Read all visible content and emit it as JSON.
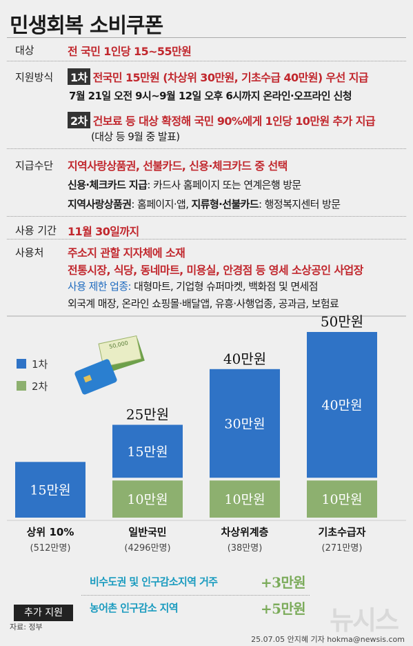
{
  "title": "민생회복 소비쿠폰",
  "rows": {
    "target": {
      "label": "대상",
      "value": "전 국민 1인당 15~55만원"
    },
    "method": {
      "label": "지원방식",
      "first_tag": "1차",
      "first_line": "전국민 15만원 (차상위 30만원, 기초수급 40만원) 우선 지급",
      "first_period": "7월 21일 오전 9시~9월 12일 오후 6시까지",
      "first_channel": "온라인·오프라인 신청",
      "second_tag": "2차",
      "second_line": "건보료 등 대상 확정해 국민 90%에게 1인당 10만원 추가 지급",
      "second_note": "(대상 등 9월 중 발표)"
    },
    "means": {
      "label": "지급수단",
      "value": "지역사랑상품권, 선불카드, 신용·체크카드 중 선택",
      "card_label": "신용·체크카드 지급",
      "card_value": ": 카드사 홈페이지 또는 연계은행 방문",
      "gift_label": "지역사랑상품권",
      "gift_value": ": 홈페이지·앱,",
      "prepaid_label": "지류형·선불카드",
      "prepaid_value": ": 행정복지센터 방문"
    },
    "period": {
      "label": "사용 기간",
      "value": "11월 30일까지"
    },
    "where": {
      "label": "사용처",
      "line1": "주소지 관할 지자체에 소재",
      "line2": "전통시장, 식당, 동네마트, 미용실, 안경점 등 영세 소상공인 사업장",
      "restrict_label": "사용 제한 업종:",
      "restrict_value": " 대형마트, 기업형 슈퍼마켓, 백화점 및 면세점",
      "line4": "외국계 매장, 온라인 쇼핑몰·배달앱, 유흥·사행업종, 공과금, 보험료"
    }
  },
  "chart_data": {
    "type": "bar",
    "stacked": true,
    "unit": "만원",
    "categories": [
      "상위 10%",
      "일반국민",
      "차상위계층",
      "기초수급자"
    ],
    "subcategories": [
      "(512만명)",
      "(4296만명)",
      "(38만명)",
      "(271만명)"
    ],
    "series": [
      {
        "name": "1차",
        "color": "#2f73c6",
        "values": [
          15,
          15,
          30,
          40
        ],
        "labels": [
          "15만원",
          "15만원",
          "30만원",
          "40만원"
        ]
      },
      {
        "name": "2차",
        "color": "#8db06f",
        "values": [
          0,
          10,
          10,
          10
        ],
        "labels": [
          "",
          "10만원",
          "10만원",
          "10만원"
        ]
      }
    ],
    "totals": [
      "",
      "25만원",
      "40만원",
      "50만원"
    ],
    "legend": "top-left"
  },
  "extra": {
    "label": "추가 지원",
    "items": [
      {
        "text": "비수도권 및 인구감소지역 거주",
        "amount": "+3만원"
      },
      {
        "text": "농어촌 인구감소 지역",
        "amount": "+5만원"
      }
    ]
  },
  "footer": {
    "source": "자료: 정부",
    "credit": "25.07.05 안지혜 기자 hokma@newsis.com",
    "watermark": "뉴시스"
  },
  "colors": {
    "red": "#c1272d",
    "blue": "#1f6bbf",
    "green": "#7bab5a"
  }
}
